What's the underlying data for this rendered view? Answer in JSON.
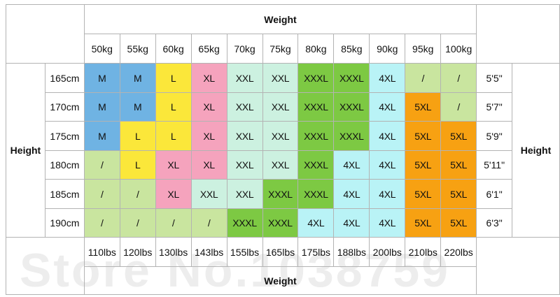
{
  "title": {
    "top": "Weight",
    "bottom": "Weight",
    "left": "Height",
    "right": "Height"
  },
  "weights_kg": [
    "50kg",
    "55kg",
    "60kg",
    "65kg",
    "70kg",
    "75kg",
    "80kg",
    "85kg",
    "90kg",
    "95kg",
    "100kg"
  ],
  "weights_lbs": [
    "110lbs",
    "120lbs",
    "130lbs",
    "143lbs",
    "155lbs",
    "165lbs",
    "175lbs",
    "188lbs",
    "200lbs",
    "210lbs",
    "220lbs"
  ],
  "rows": [
    {
      "cm": "165cm",
      "ft": "5'5\"",
      "sizes": [
        "M",
        "M",
        "L",
        "XL",
        "XXL",
        "XXL",
        "XXXL",
        "XXXL",
        "4XL",
        "/",
        "/"
      ]
    },
    {
      "cm": "170cm",
      "ft": "5'7\"",
      "sizes": [
        "M",
        "M",
        "L",
        "XL",
        "XXL",
        "XXL",
        "XXXL",
        "XXXL",
        "4XL",
        "5XL",
        "/"
      ]
    },
    {
      "cm": "175cm",
      "ft": "5'9\"",
      "sizes": [
        "M",
        "L",
        "L",
        "XL",
        "XXL",
        "XXL",
        "XXXL",
        "XXXL",
        "4XL",
        "5XL",
        "5XL"
      ]
    },
    {
      "cm": "180cm",
      "ft": "5'11\"",
      "sizes": [
        "/",
        "L",
        "XL",
        "XL",
        "XXL",
        "XXL",
        "XXXL",
        "4XL",
        "4XL",
        "5XL",
        "5XL"
      ]
    },
    {
      "cm": "185cm",
      "ft": "6'1\"",
      "sizes": [
        "/",
        "/",
        "XL",
        "XXL",
        "XXL",
        "XXXL",
        "XXXL",
        "4XL",
        "4XL",
        "5XL",
        "5XL"
      ]
    },
    {
      "cm": "190cm",
      "ft": "6'3\"",
      "sizes": [
        "/",
        "/",
        "/",
        "/",
        "XXXL",
        "XXXL",
        "4XL",
        "4XL",
        "4XL",
        "5XL",
        "5XL"
      ]
    }
  ],
  "size_colors": {
    "M": "#6fb3e3",
    "L": "#fbe73a",
    "XL": "#f5a3bd",
    "XXL": "#ccf1e0",
    "XXXL": "#7dc943",
    "4XL": "#b9f3f6",
    "5XL": "#f7a112",
    "/": "#c9e59f"
  },
  "watermark": "Store No.1038759"
}
